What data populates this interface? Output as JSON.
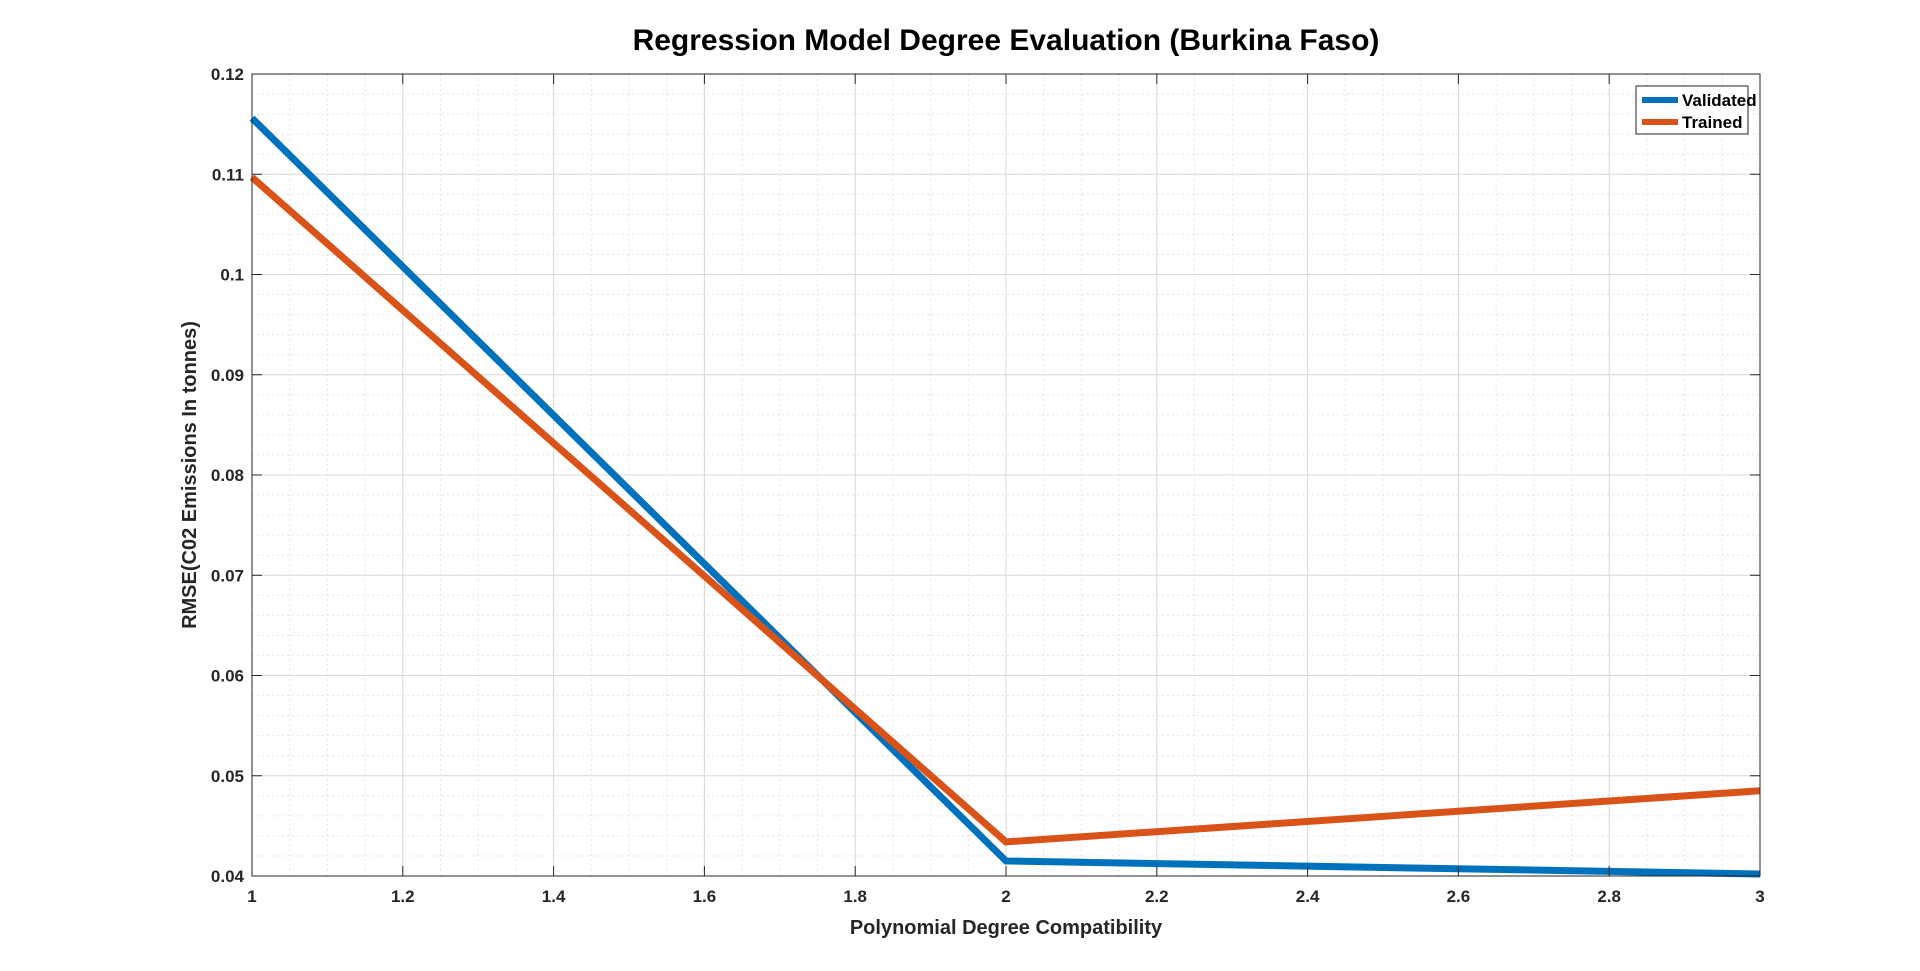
{
  "chart_data": {
    "type": "line",
    "title": "Regression Model Degree Evaluation (Burkina Faso)",
    "xlabel": "Polynomial Degree Compatibility",
    "ylabel": "RMSE(C02 Emissions In tonnes)",
    "xlim": [
      1,
      3
    ],
    "ylim": [
      0.04,
      0.12
    ],
    "x_ticks": [
      1,
      1.2,
      1.4,
      1.6,
      1.8,
      2,
      2.2,
      2.4,
      2.6,
      2.8,
      3
    ],
    "x_tick_labels": [
      "1",
      "1.2",
      "1.4",
      "1.6",
      "1.8",
      "2",
      "2.2",
      "2.4",
      "2.6",
      "2.8",
      "3"
    ],
    "y_ticks": [
      0.04,
      0.05,
      0.06,
      0.07,
      0.08,
      0.09,
      0.1,
      0.11,
      0.12
    ],
    "y_tick_labels": [
      "0.04",
      "0.05",
      "0.06",
      "0.07",
      "0.08",
      "0.09",
      "0.1",
      "0.11",
      "0.12"
    ],
    "grid": true,
    "minor_grid": true,
    "legend_position": "top-right",
    "series": [
      {
        "name": "Validated",
        "color": "#0072BD",
        "x": [
          1,
          2,
          3
        ],
        "y": [
          0.1156,
          0.0415,
          0.0402
        ]
      },
      {
        "name": "Trained",
        "color": "#D95319",
        "x": [
          1,
          2,
          3
        ],
        "y": [
          0.1097,
          0.0434,
          0.0485
        ]
      }
    ]
  }
}
